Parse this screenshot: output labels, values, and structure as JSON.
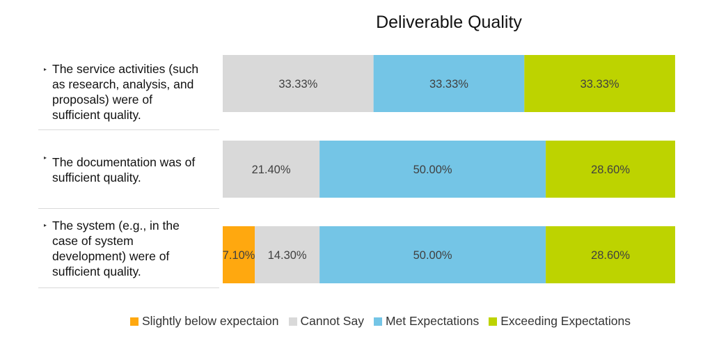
{
  "chart_data": {
    "type": "bar",
    "orientation": "horizontal-stacked-100",
    "title": "Deliverable Quality",
    "categories": [
      "The service activities (such as research, analysis, and proposals) were of sufficient quality.",
      "The documentation was of sufficient quality.",
      "The system (e.g., in the case of system development) were of sufficient quality."
    ],
    "category_lines": [
      [
        "The service activities (such",
        "as research, analysis, and",
        "proposals) were of",
        "sufficient quality."
      ],
      [
        "The documentation was of",
        "sufficient quality."
      ],
      [
        "The system (e.g., in the",
        "case of system",
        "development) were of",
        "sufficient quality."
      ]
    ],
    "series": [
      {
        "name": "Slightly below expectaion",
        "color": "#FFA80F",
        "values": [
          0,
          0,
          7.1
        ],
        "labels": [
          "",
          "",
          "7.10%"
        ]
      },
      {
        "name": "Cannot Say",
        "color": "#D9D9D9",
        "values": [
          33.33,
          21.4,
          14.3
        ],
        "labels": [
          "33.33%",
          "21.40%",
          "14.30%"
        ]
      },
      {
        "name": "Met Expectations",
        "color": "#74C5E6",
        "values": [
          33.33,
          50.0,
          50.0
        ],
        "labels": [
          "33.33%",
          "50.00%",
          "50.00%"
        ]
      },
      {
        "name": "Exceeding Expectations",
        "color": "#BDD300",
        "values": [
          33.33,
          28.6,
          28.6
        ],
        "labels": [
          "33.33%",
          "28.60%",
          "28.60%"
        ]
      }
    ],
    "xlim": [
      0,
      100
    ],
    "legend": "bottom",
    "grid": false
  }
}
